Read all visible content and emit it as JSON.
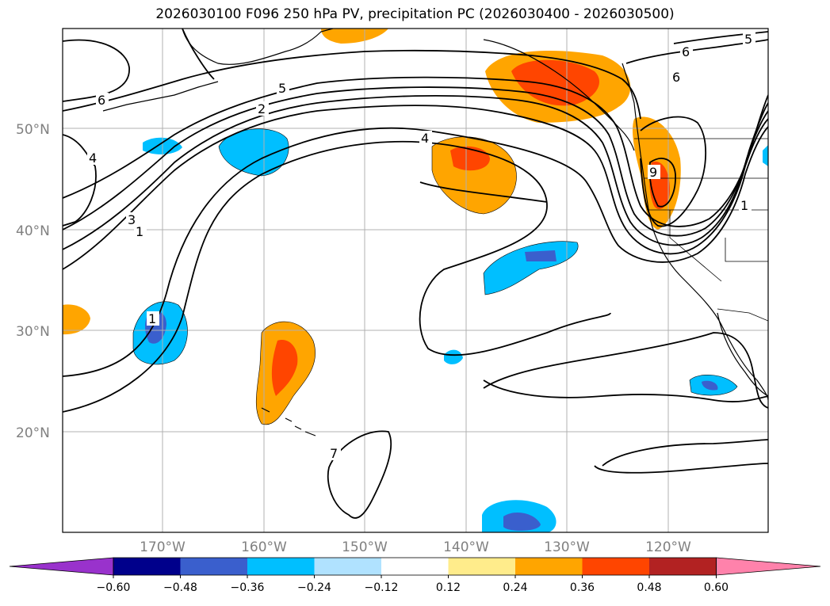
{
  "title": "2026030100 F096 250 hPa PV, precipitation PC (2026030400 - 2026030500)",
  "map": {
    "lat_labels": [
      "50°N",
      "40°N",
      "30°N",
      "20°N"
    ],
    "lon_labels": [
      "170°W",
      "160°W",
      "150°W",
      "140°W",
      "130°W",
      "120°W"
    ],
    "contour_labels": [
      "6",
      "6",
      "5",
      "2",
      "4",
      "3",
      "1",
      "1",
      "7",
      "4",
      "5",
      "6",
      "9",
      "1"
    ]
  },
  "colorbar": {
    "ticks": [
      "−0.60",
      "−0.48",
      "−0.36",
      "−0.24",
      "−0.12",
      "0.12",
      "0.24",
      "0.36",
      "0.48",
      "0.60"
    ],
    "colors": [
      "#9932cc",
      "#00008b",
      "#3a5fcd",
      "#00bfff",
      "#b0e2ff",
      "#ffffff",
      "#ffec8b",
      "#ffa500",
      "#ff4500",
      "#b22222",
      "#ff82ab"
    ]
  }
}
